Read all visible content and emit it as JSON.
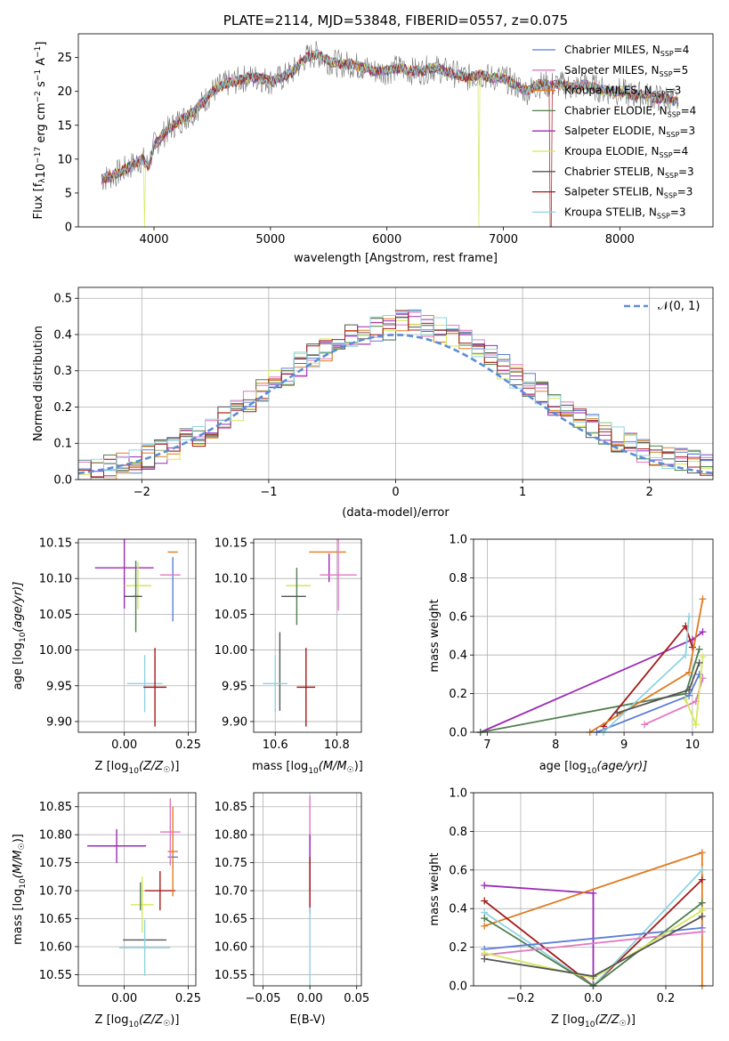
{
  "colors": {
    "chabrier_miles": "#5b7fd6",
    "salpeter_miles": "#e377c2",
    "kroupa_miles": "#e07b1e",
    "chabrier_elodie": "#4f7f4f",
    "salpeter_elodie": "#9b2bb5",
    "kroupa_elodie": "#d4e85a",
    "chabrier_stelib": "#555555",
    "salpeter_stelib": "#a31c1c",
    "kroupa_stelib": "#8fd3e0",
    "normal": "#5b8ed6"
  },
  "chart_data": [
    {
      "id": "spectrum",
      "type": "line",
      "title": "PLATE=2114, MJD=53848, FIBERID=0557, z=0.075",
      "xlabel": "wavelength [Angstrom, rest frame]",
      "ylabel": "Flux [f",
      "ylabel_parts": {
        "a": "Flux [f",
        "b": "λ",
        "c": "10",
        "d": "−17",
        "e": " erg cm",
        "f": "−2",
        "g": " s",
        "h": "−1",
        "i": " A",
        "j": "−1",
        "k": "]"
      },
      "xlim": [
        3350,
        8800
      ],
      "ylim": [
        0,
        28.5
      ],
      "xticks": [
        4000,
        5000,
        6000,
        7000,
        8000
      ],
      "yticks": [
        0,
        5,
        10,
        15,
        20,
        25
      ],
      "legend": [
        {
          "label": "Chabrier MILES, N",
          "n": "4"
        },
        {
          "label": "Salpeter MILES, N",
          "n": "5"
        },
        {
          "label": "Kroupa MILES, N",
          "n": "3"
        },
        {
          "label": "Chabrier ELODIE, N",
          "n": "4"
        },
        {
          "label": "Salpeter ELODIE, N",
          "n": "3"
        },
        {
          "label": "Kroupa ELODIE, N",
          "n": "4"
        },
        {
          "label": "Chabrier STELIB, N",
          "n": "3"
        },
        {
          "label": "Salpeter STELIB, N",
          "n": "3"
        },
        {
          "label": "Kroupa STELIB, N",
          "n": "3"
        }
      ],
      "legend_sub": "SSP",
      "continuum": [
        [
          3550,
          7
        ],
        [
          3700,
          8
        ],
        [
          3800,
          9
        ],
        [
          3900,
          10
        ],
        [
          3950,
          9
        ],
        [
          4000,
          12
        ],
        [
          4100,
          14
        ],
        [
          4200,
          15.5
        ],
        [
          4300,
          16.5
        ],
        [
          4400,
          18
        ],
        [
          4500,
          20
        ],
        [
          4600,
          21
        ],
        [
          4700,
          21.5
        ],
        [
          4800,
          22
        ],
        [
          4900,
          22
        ],
        [
          5000,
          21.5
        ],
        [
          5100,
          22
        ],
        [
          5200,
          23
        ],
        [
          5300,
          25
        ],
        [
          5400,
          25.5
        ],
        [
          5500,
          24.5
        ],
        [
          5600,
          24
        ],
        [
          5700,
          24
        ],
        [
          5800,
          23.5
        ],
        [
          5900,
          23
        ],
        [
          6000,
          23
        ],
        [
          6100,
          23.5
        ],
        [
          6200,
          23
        ],
        [
          6300,
          23
        ],
        [
          6400,
          23.5
        ],
        [
          6500,
          23
        ],
        [
          6600,
          22.5
        ],
        [
          6700,
          22
        ],
        [
          6800,
          22.5
        ],
        [
          6900,
          22
        ],
        [
          7000,
          22
        ],
        [
          7100,
          21
        ],
        [
          7200,
          20
        ],
        [
          7300,
          21
        ],
        [
          7400,
          21
        ],
        [
          7500,
          21
        ],
        [
          7600,
          20.5
        ],
        [
          7700,
          21
        ],
        [
          7800,
          20.5
        ],
        [
          7900,
          20
        ],
        [
          8000,
          20
        ],
        [
          8100,
          19.5
        ],
        [
          8200,
          19.5
        ],
        [
          8300,
          19
        ],
        [
          8400,
          19
        ],
        [
          8500,
          18.5
        ]
      ]
    },
    {
      "id": "residuals",
      "type": "histogram",
      "xlabel": "(data-model)/error",
      "ylabel": "Normed distribution",
      "xlim": [
        -2.5,
        2.5
      ],
      "ylim": [
        0,
        0.53
      ],
      "xticks": [
        -2,
        -1,
        0,
        1,
        2
      ],
      "yticks": [
        0.0,
        0.1,
        0.2,
        0.3,
        0.4,
        0.5
      ],
      "xtick_labels": [
        "−2",
        "−1",
        "0",
        "1",
        "2"
      ],
      "ytick_labels": [
        "0.0",
        "0.1",
        "0.2",
        "0.3",
        "0.4",
        "0.5"
      ],
      "legend": "𝒩(0, 1)",
      "legend_position": "top-right",
      "bin_width": 0.1
    },
    {
      "id": "age_vs_Z",
      "type": "errorbar",
      "xlabel": "Z [log",
      "xlabel_tail": "(Z/Z",
      "ylabel": "age  [log",
      "ylabel_tail": "(age/yr)]",
      "xlim": [
        -0.18,
        0.28
      ],
      "ylim": [
        9.885,
        10.155
      ],
      "xticks": [
        0.0,
        0.25
      ],
      "xtick_labels": [
        "0.00",
        "0.25"
      ],
      "yticks": [
        9.9,
        9.95,
        10.0,
        10.05,
        10.1,
        10.15
      ],
      "ytick_labels": [
        "9.90",
        "9.95",
        "10.00",
        "10.05",
        "10.10",
        "10.15"
      ],
      "points": [
        {
          "s": "salpeter_elodie",
          "x": 0.0,
          "xe": 0.115,
          "y": 10.115,
          "ye": 0.057
        },
        {
          "s": "kroupa_elodie",
          "x": 0.053,
          "xe": 0.053,
          "y": 10.09,
          "ye": 0.033
        },
        {
          "s": "chabrier_elodie",
          "x": 0.045,
          "xe": 0.015,
          "y": 10.075,
          "ye": 0.05
        },
        {
          "s": "chabrier_stelib",
          "x": 0.035,
          "xe": 0.035,
          "y": 10.075,
          "ye": 0.0
        },
        {
          "s": "kroupa_miles",
          "x": 0.19,
          "xe": 0.02,
          "y": 10.137,
          "ye": 0.0
        },
        {
          "s": "chabrier_miles",
          "x": 0.19,
          "xe": 0.0,
          "y": 10.085,
          "ye": 0.045
        },
        {
          "s": "salpeter_miles",
          "x": 0.18,
          "xe": 0.04,
          "y": 10.105,
          "ye": 0.0
        },
        {
          "s": "kroupa_stelib",
          "x": 0.08,
          "xe": 0.07,
          "y": 9.953,
          "ye": 0.04
        },
        {
          "s": "salpeter_stelib",
          "x": 0.12,
          "xe": 0.045,
          "y": 9.948,
          "ye": 0.055
        }
      ]
    },
    {
      "id": "age_vs_mass",
      "type": "errorbar",
      "xlabel": "mass [log",
      "xlabel_tail": "(M/M",
      "xlim": [
        10.53,
        10.88
      ],
      "ylim": [
        9.885,
        10.155
      ],
      "xticks": [
        10.6,
        10.8
      ],
      "xtick_labels": [
        "10.6",
        "10.8"
      ],
      "yticks": [
        9.9,
        9.95,
        10.0,
        10.05,
        10.1,
        10.15
      ],
      "ytick_labels": [
        "9.90",
        "9.95",
        "10.00",
        "10.05",
        "10.10",
        "10.15"
      ],
      "points": [
        {
          "s": "salpeter_elodie",
          "x": 10.775,
          "xe": 0.0,
          "y": 10.115,
          "ye": 0.02
        },
        {
          "s": "kroupa_elodie",
          "x": 10.675,
          "xe": 0.04,
          "y": 10.09,
          "ye": 0.0
        },
        {
          "s": "chabrier_elodie",
          "x": 10.67,
          "xe": 0.0,
          "y": 10.075,
          "ye": 0.04
        },
        {
          "s": "chabrier_stelib",
          "x": 10.615,
          "xe": 0.0,
          "y": 9.97,
          "ye": 0.055
        },
        {
          "s": "chabrier_stelib",
          "x": 10.66,
          "xe": 0.04,
          "y": 10.075,
          "ye": 0.0
        },
        {
          "s": "kroupa_miles",
          "x": 10.77,
          "xe": 0.06,
          "y": 10.137,
          "ye": 0.0
        },
        {
          "s": "salpeter_miles",
          "x": 10.805,
          "xe": 0.06,
          "y": 10.105,
          "ye": 0.05
        },
        {
          "s": "kroupa_stelib",
          "x": 10.6,
          "xe": 0.04,
          "y": 9.953,
          "ye": 0.04
        },
        {
          "s": "salpeter_stelib",
          "x": 10.7,
          "xe": 0.03,
          "y": 9.948,
          "ye": 0.055
        }
      ]
    },
    {
      "id": "weight_vs_age",
      "type": "line",
      "xlabel": "age  [log",
      "xlabel_tail": "(age/yr)]",
      "ylabel": "mass weight",
      "xlim": [
        6.8,
        10.3
      ],
      "ylim": [
        0,
        1
      ],
      "xticks": [
        7,
        8,
        9,
        10
      ],
      "xtick_labels": [
        "7",
        "8",
        "9",
        "10"
      ],
      "yticks": [
        0,
        0.2,
        0.4,
        0.6,
        0.8,
        1.0
      ],
      "ytick_labels": [
        "0.0",
        "0.2",
        "0.4",
        "0.6",
        "0.8",
        "1.0"
      ],
      "series": [
        {
          "s": "salpeter_elodie",
          "x": [
            6.9,
            10.0,
            10.15
          ],
          "y": [
            0.0,
            0.48,
            0.52
          ]
        },
        {
          "s": "chabrier_elodie",
          "x": [
            6.9,
            9.9,
            10.1
          ],
          "y": [
            0.0,
            0.2,
            0.43
          ]
        },
        {
          "s": "salpeter_stelib",
          "x": [
            8.7,
            9.9,
            10.0
          ],
          "y": [
            0.03,
            0.55,
            0.44
          ]
        },
        {
          "s": "kroupa_miles",
          "x": [
            8.5,
            9.95,
            10.15
          ],
          "y": [
            0.0,
            0.31,
            0.69
          ]
        },
        {
          "s": "chabrier_miles",
          "x": [
            8.6,
            9.95,
            10.1
          ],
          "y": [
            0.0,
            0.19,
            0.3
          ]
        },
        {
          "s": "kroupa_stelib",
          "x": [
            8.7,
            9.9,
            9.95
          ],
          "y": [
            0.0,
            0.4,
            0.6
          ]
        },
        {
          "s": "salpeter_miles",
          "x": [
            9.3,
            10.05,
            10.15
          ],
          "y": [
            0.04,
            0.16,
            0.28
          ]
        },
        {
          "s": "kroupa_elodie",
          "x": [
            9.9,
            10.05,
            10.15
          ],
          "y": [
            0.17,
            0.04,
            0.39
          ]
        },
        {
          "s": "chabrier_stelib",
          "x": [
            8.9,
            9.95,
            10.1
          ],
          "y": [
            0.1,
            0.22,
            0.36
          ]
        }
      ]
    },
    {
      "id": "mass_vs_Z",
      "type": "errorbar",
      "xlabel": "Z [log",
      "xlabel_tail": "(Z/Z",
      "ylabel": "mass [log",
      "ylabel_tail": "(M/M",
      "xlim": [
        -0.18,
        0.28
      ],
      "ylim": [
        10.53,
        10.875
      ],
      "xticks": [
        0.0,
        0.25
      ],
      "xtick_labels": [
        "0.00",
        "0.25"
      ],
      "yticks": [
        10.55,
        10.6,
        10.65,
        10.7,
        10.75,
        10.8,
        10.85
      ],
      "ytick_labels": [
        "10.55",
        "10.60",
        "10.65",
        "10.70",
        "10.75",
        "10.80",
        "10.85"
      ],
      "points": [
        {
          "s": "salpeter_elodie",
          "x": -0.03,
          "xe": 0.115,
          "y": 10.78,
          "ye": 0.03
        },
        {
          "s": "kroupa_elodie",
          "x": 0.07,
          "xe": 0.045,
          "y": 10.675,
          "ye": 0.05
        },
        {
          "s": "chabrier_elodie",
          "x": 0.063,
          "xe": 0.0,
          "y": 10.69,
          "ye": 0.025
        },
        {
          "s": "chabrier_stelib",
          "x": 0.08,
          "xe": 0.085,
          "y": 10.612,
          "ye": 0.0
        },
        {
          "s": "kroupa_stelib",
          "x": 0.08,
          "xe": 0.1,
          "y": 10.598,
          "ye": 0.05
        },
        {
          "s": "salpeter_stelib",
          "x": 0.14,
          "xe": 0.06,
          "y": 10.7,
          "ye": 0.035
        },
        {
          "s": "kroupa_miles",
          "x": 0.19,
          "xe": 0.02,
          "y": 10.77,
          "ye": 0.08
        },
        {
          "s": "chabrier_miles",
          "x": 0.19,
          "xe": 0.02,
          "y": 10.76,
          "ye": 0.0
        },
        {
          "s": "salpeter_miles",
          "x": 0.18,
          "xe": 0.04,
          "y": 10.805,
          "ye": 0.06
        }
      ]
    },
    {
      "id": "mass_vs_ebv",
      "type": "errorbar",
      "xlabel": "E(B-V)",
      "xlim": [
        -0.06,
        0.055
      ],
      "ylim": [
        10.53,
        10.875
      ],
      "xticks": [
        -0.05,
        0.0,
        0.05
      ],
      "xtick_labels": [
        "−0.05",
        "0.00",
        "0.05"
      ],
      "yticks": [
        10.55,
        10.6,
        10.65,
        10.7,
        10.75,
        10.8,
        10.85
      ],
      "ytick_labels": [
        "10.55",
        "10.60",
        "10.65",
        "10.70",
        "10.75",
        "10.80",
        "10.85"
      ],
      "points": [
        {
          "s": "salpeter_miles",
          "x": 0.0,
          "xe": 0.0,
          "y": 10.77,
          "ye": 0.1
        },
        {
          "s": "salpeter_elodie",
          "x": 0.0,
          "xe": 0.0,
          "y": 10.75,
          "ye": 0.05
        },
        {
          "s": "salpeter_stelib",
          "x": 0.0,
          "xe": 0.0,
          "y": 10.71,
          "ye": 0.05
        },
        {
          "s": "kroupa_stelib",
          "x": 0.0,
          "xe": 0.0,
          "y": 10.6,
          "ye": 0.07
        }
      ]
    },
    {
      "id": "weight_vs_Z",
      "type": "line",
      "xlabel": "Z [log",
      "xlabel_tail": "(Z/Z",
      "ylabel": "mass weight",
      "xlim": [
        -0.33,
        0.33
      ],
      "ylim": [
        0,
        1
      ],
      "xticks": [
        -0.2,
        0.0,
        0.2
      ],
      "xtick_labels": [
        "−0.2",
        "0.0",
        "0.2"
      ],
      "yticks": [
        0,
        0.2,
        0.4,
        0.6,
        0.8,
        1.0
      ],
      "ytick_labels": [
        "0.0",
        "0.2",
        "0.4",
        "0.6",
        "0.8",
        "1.0"
      ],
      "series": [
        {
          "s": "salpeter_elodie",
          "x": [
            -0.3,
            0.0,
            0.0
          ],
          "y": [
            0.52,
            0.48,
            0.0
          ]
        },
        {
          "s": "kroupa_miles",
          "x": [
            -0.3,
            0.3,
            0.3
          ],
          "y": [
            0.31,
            0.69,
            0.0
          ]
        },
        {
          "s": "salpeter_stelib",
          "x": [
            -0.3,
            0.0,
            0.3
          ],
          "y": [
            0.44,
            0.0,
            0.55
          ]
        },
        {
          "s": "kroupa_stelib",
          "x": [
            -0.3,
            0.0,
            0.3
          ],
          "y": [
            0.38,
            0.0,
            0.6
          ]
        },
        {
          "s": "chabrier_elodie",
          "x": [
            -0.3,
            0.0,
            0.3
          ],
          "y": [
            0.35,
            0.0,
            0.43
          ]
        },
        {
          "s": "chabrier_miles",
          "x": [
            -0.3,
            0.3
          ],
          "y": [
            0.19,
            0.3
          ]
        },
        {
          "s": "salpeter_miles",
          "x": [
            -0.3,
            0.3
          ],
          "y": [
            0.16,
            0.28
          ]
        },
        {
          "s": "kroupa_elodie",
          "x": [
            -0.3,
            0.0,
            0.3
          ],
          "y": [
            0.17,
            0.04,
            0.39
          ]
        },
        {
          "s": "chabrier_stelib",
          "x": [
            -0.3,
            0.0,
            0.3
          ],
          "y": [
            0.14,
            0.05,
            0.36
          ]
        }
      ]
    }
  ]
}
